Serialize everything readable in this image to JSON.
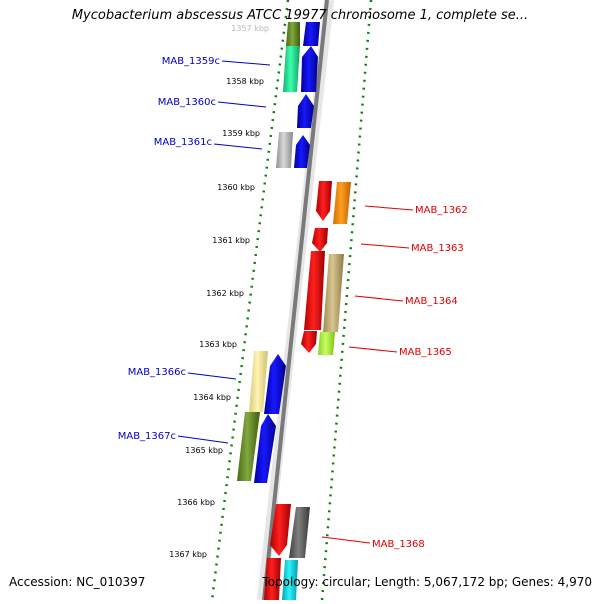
{
  "title": "Mycobacterium abscessus ATCC 19977 chromosome 1, complete se...",
  "footer": {
    "accession": "Accession: NC_010397",
    "summary": "Topology: circular; Length: 5,067,172 bp; Genes: 4,970"
  },
  "scale_labels": [
    "1357 kbp",
    "1358 kbp",
    "1359 kbp",
    "1360 kbp",
    "1361 kbp",
    "1362 kbp",
    "1363 kbp",
    "1364 kbp",
    "1365 kbp",
    "1366 kbp",
    "1367 kbp"
  ],
  "genes": [
    {
      "label": "MAB_1359c",
      "strand": "reverse",
      "color": "#0000c8"
    },
    {
      "label": "MAB_1360c",
      "strand": "reverse",
      "color": "#0000c8"
    },
    {
      "label": "MAB_1361c",
      "strand": "reverse",
      "color": "#0000c8"
    },
    {
      "label": "MAB_1362",
      "strand": "forward",
      "color": "#e00000"
    },
    {
      "label": "MAB_1363",
      "strand": "forward",
      "color": "#e00000"
    },
    {
      "label": "MAB_1364",
      "strand": "forward",
      "color": "#e00000"
    },
    {
      "label": "MAB_1365",
      "strand": "forward",
      "color": "#e00000"
    },
    {
      "label": "MAB_1366c",
      "strand": "reverse",
      "color": "#0000c8"
    },
    {
      "label": "MAB_1367c",
      "strand": "reverse",
      "color": "#0000c8"
    },
    {
      "label": "MAB_1368",
      "strand": "forward",
      "color": "#e00000"
    }
  ]
}
